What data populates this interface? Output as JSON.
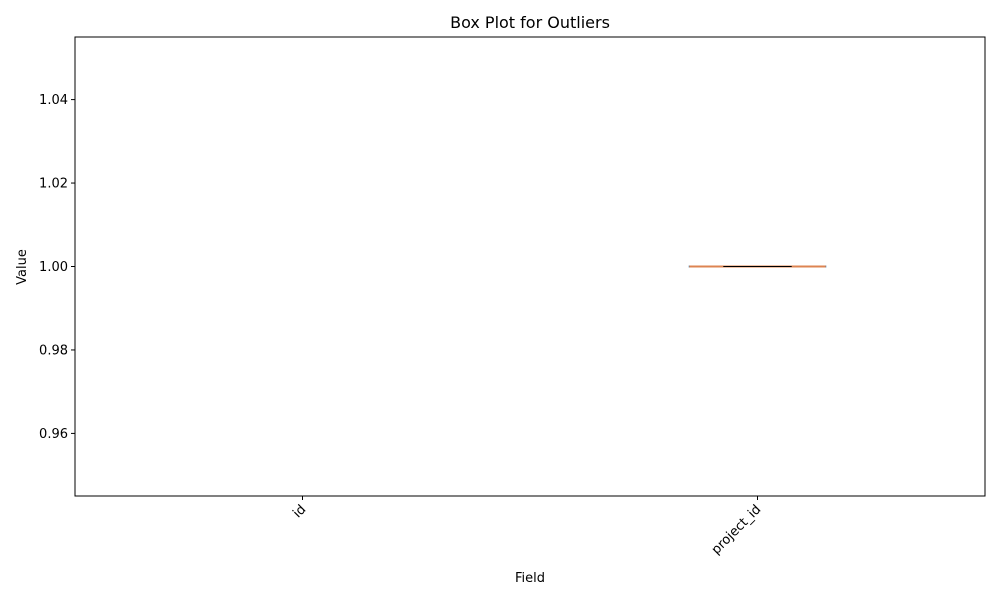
{
  "chart_data": {
    "type": "box",
    "title": "Box Plot for Outliers",
    "xlabel": "Field",
    "ylabel": "Value",
    "categories": [
      "id",
      "project_id"
    ],
    "boxes": [
      {
        "category": "id",
        "min": null,
        "q1": null,
        "median": null,
        "q3": null,
        "max": null
      },
      {
        "category": "project_id",
        "min": 1.0,
        "q1": 1.0,
        "median": 1.0,
        "q3": 1.0,
        "max": 1.0
      }
    ],
    "ylim": [
      0.945,
      1.055
    ],
    "yticks": [
      "0.96",
      "0.98",
      "1.00",
      "1.02",
      "1.04"
    ],
    "ytick_values": [
      0.96,
      0.98,
      1.0,
      1.02,
      1.04
    ],
    "xtick_rotation_deg": 45,
    "grid": false,
    "colors": {
      "box": "#1f77b4",
      "median": "#dd8452",
      "axis": "#000000"
    }
  }
}
